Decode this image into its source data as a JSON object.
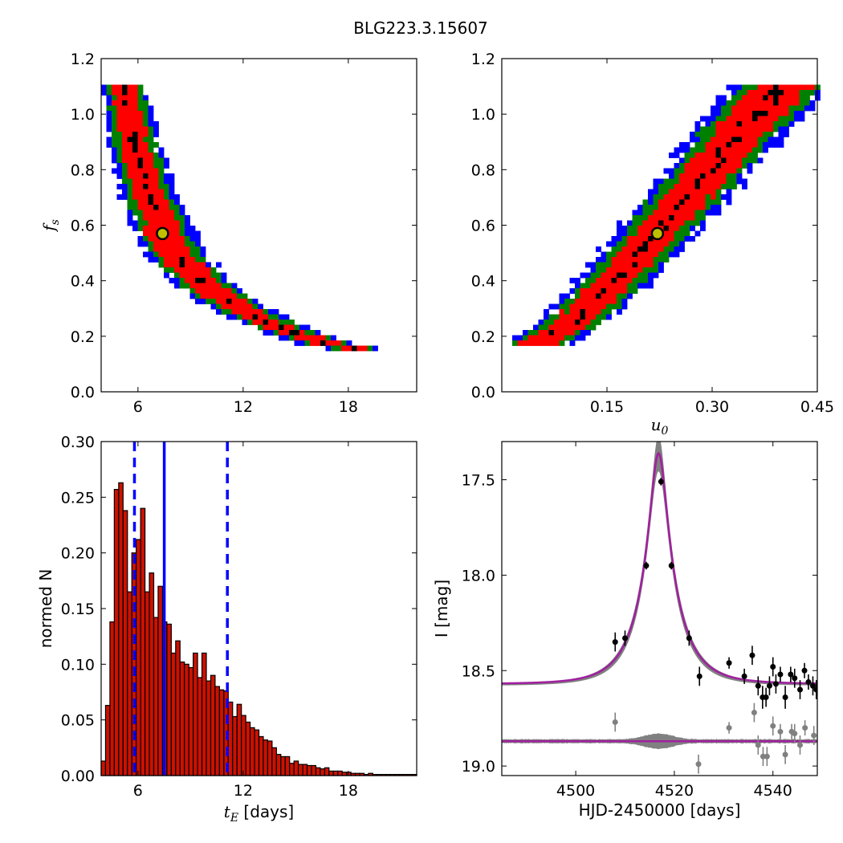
{
  "figure": {
    "title": "BLG223.3.15607"
  },
  "colors": {
    "sigma3": "#0000ff",
    "sigma2": "#008000",
    "sigma1": "#ff0000",
    "best_cells": "#000000",
    "marker_fill": "#bfbf00",
    "hist_fill": "#cc1100",
    "hist_edge": "#000000",
    "vline": "#0000ff",
    "band": "#808080",
    "model": "#a020a0",
    "data": "#000000",
    "resid": "#808080"
  },
  "chart_data": [
    {
      "id": "fs_vs_tE",
      "type": "heatmap",
      "xlabel": "",
      "ylabel": "f_s",
      "xlim": [
        3.9,
        21.9
      ],
      "ylim": [
        0.0,
        1.2
      ],
      "xticks": [
        6,
        12,
        18
      ],
      "xtick_labels": [
        "6",
        "12",
        "18"
      ],
      "yticks": [
        0.0,
        0.2,
        0.4,
        0.6,
        0.8,
        1.0,
        1.2
      ],
      "ytick_labels": [
        "0.0",
        "0.2",
        "0.4",
        "0.6",
        "0.8",
        "1.0",
        "1.2"
      ],
      "marker": {
        "x": 7.4,
        "y": 0.57
      },
      "contour_ridge": [
        [
          5.2,
          1.1
        ],
        [
          5.5,
          1.0
        ],
        [
          5.8,
          0.9
        ],
        [
          6.2,
          0.8
        ],
        [
          6.7,
          0.7
        ],
        [
          7.3,
          0.6
        ],
        [
          8.1,
          0.5
        ],
        [
          9.2,
          0.42
        ],
        [
          10.6,
          0.35
        ],
        [
          12.4,
          0.28
        ],
        [
          14.5,
          0.22
        ],
        [
          17.0,
          0.17
        ],
        [
          20.0,
          0.14
        ]
      ],
      "levels": [
        "1 sigma",
        "2 sigma",
        "3 sigma"
      ]
    },
    {
      "id": "fs_vs_u0",
      "type": "heatmap",
      "xlabel": "u_0",
      "ylabel": "",
      "xlim": [
        0.0,
        0.45
      ],
      "ylim": [
        0.0,
        1.2
      ],
      "xticks": [
        0.15,
        0.3,
        0.45
      ],
      "xtick_labels": [
        "0.15",
        "0.30",
        "0.45"
      ],
      "yticks": [
        0.0,
        0.2,
        0.4,
        0.6,
        0.8,
        1.0,
        1.2
      ],
      "ytick_labels": [
        "0.0",
        "0.2",
        "0.4",
        "0.6",
        "0.8",
        "1.0",
        "1.2"
      ],
      "marker": {
        "x": 0.222,
        "y": 0.57
      },
      "contour_ridge": [
        [
          0.04,
          0.16
        ],
        [
          0.07,
          0.2
        ],
        [
          0.1,
          0.25
        ],
        [
          0.13,
          0.32
        ],
        [
          0.16,
          0.4
        ],
        [
          0.19,
          0.48
        ],
        [
          0.22,
          0.57
        ],
        [
          0.25,
          0.66
        ],
        [
          0.28,
          0.75
        ],
        [
          0.31,
          0.84
        ],
        [
          0.34,
          0.93
        ],
        [
          0.37,
          1.02
        ],
        [
          0.4,
          1.1
        ]
      ],
      "levels": [
        "1 sigma",
        "2 sigma",
        "3 sigma"
      ]
    },
    {
      "id": "tE_histogram",
      "type": "bar",
      "xlabel": "t_E [days]",
      "ylabel": "normed N",
      "xlim": [
        3.9,
        21.9
      ],
      "ylim": [
        0.0,
        0.3
      ],
      "xticks": [
        6,
        12,
        18
      ],
      "xtick_labels": [
        "6",
        "12",
        "18"
      ],
      "yticks": [
        0.0,
        0.05,
        0.1,
        0.15,
        0.2,
        0.25,
        0.3
      ],
      "ytick_labels": [
        "0.00",
        "0.05",
        "0.10",
        "0.15",
        "0.20",
        "0.25",
        "0.30"
      ],
      "bin_start": 3.9,
      "bin_width": 0.25,
      "values": [
        0.013,
        0.063,
        0.138,
        0.257,
        0.263,
        0.238,
        0.165,
        0.2,
        0.212,
        0.24,
        0.165,
        0.182,
        0.142,
        0.17,
        0.138,
        0.136,
        0.11,
        0.121,
        0.102,
        0.1,
        0.097,
        0.11,
        0.088,
        0.11,
        0.085,
        0.09,
        0.08,
        0.077,
        0.076,
        0.066,
        0.053,
        0.064,
        0.054,
        0.048,
        0.043,
        0.041,
        0.035,
        0.032,
        0.031,
        0.025,
        0.019,
        0.017,
        0.017,
        0.011,
        0.013,
        0.01,
        0.01,
        0.009,
        0.009,
        0.007,
        0.006,
        0.007,
        0.004,
        0.004,
        0.004,
        0.003,
        0.003,
        0.002,
        0.002,
        0.002,
        0.001,
        0.002,
        0.001,
        0.001,
        0.001,
        0.001,
        0.001,
        0.001,
        0.001,
        0.001,
        0.001,
        0.001
      ],
      "median": 7.5,
      "lower": 5.8,
      "upper": 11.1
    },
    {
      "id": "lightcurve",
      "type": "scatter",
      "xlabel": "HJD-2450000 [days]",
      "ylabel": "I [mag]",
      "xlim": [
        4485,
        4549
      ],
      "ylim": [
        19.05,
        17.3
      ],
      "xticks": [
        4500,
        4520,
        4540
      ],
      "xtick_labels": [
        "4500",
        "4520",
        "4540"
      ],
      "yticks": [
        17.5,
        18.0,
        18.5,
        19.0
      ],
      "ytick_labels": [
        "17.5",
        "18.0",
        "18.5",
        "19.0"
      ],
      "model": {
        "t0": 4516.8,
        "tE": 7.4,
        "u0": 0.222,
        "fs": 0.57,
        "baseline": 18.57
      },
      "residual_offset": 18.87,
      "points": [
        {
          "x": 4508.0,
          "y": 18.35,
          "e": 0.05
        },
        {
          "x": 4510.0,
          "y": 18.33,
          "e": 0.04
        },
        {
          "x": 4514.3,
          "y": 17.95,
          "e": 0.02
        },
        {
          "x": 4517.3,
          "y": 17.51,
          "e": 0.02
        },
        {
          "x": 4519.4,
          "y": 17.95,
          "e": 0.02
        },
        {
          "x": 4523.0,
          "y": 18.33,
          "e": 0.04
        },
        {
          "x": 4525.1,
          "y": 18.53,
          "e": 0.05
        },
        {
          "x": 4531.1,
          "y": 18.46,
          "e": 0.03
        },
        {
          "x": 4534.2,
          "y": 18.53,
          "e": 0.04
        },
        {
          "x": 4535.8,
          "y": 18.42,
          "e": 0.05
        },
        {
          "x": 4537.0,
          "y": 18.58,
          "e": 0.05
        },
        {
          "x": 4537.9,
          "y": 18.64,
          "e": 0.06
        },
        {
          "x": 4538.6,
          "y": 18.64,
          "e": 0.05
        },
        {
          "x": 4539.3,
          "y": 18.58,
          "e": 0.05
        },
        {
          "x": 4540.0,
          "y": 18.48,
          "e": 0.05
        },
        {
          "x": 4540.6,
          "y": 18.57,
          "e": 0.05
        },
        {
          "x": 4541.5,
          "y": 18.52,
          "e": 0.04
        },
        {
          "x": 4542.5,
          "y": 18.64,
          "e": 0.06
        },
        {
          "x": 4543.6,
          "y": 18.52,
          "e": 0.04
        },
        {
          "x": 4544.4,
          "y": 18.54,
          "e": 0.05
        },
        {
          "x": 4545.5,
          "y": 18.6,
          "e": 0.05
        },
        {
          "x": 4546.4,
          "y": 18.5,
          "e": 0.04
        },
        {
          "x": 4547.2,
          "y": 18.56,
          "e": 0.04
        },
        {
          "x": 4548.1,
          "y": 18.58,
          "e": 0.05
        },
        {
          "x": 4548.8,
          "y": 18.6,
          "e": 0.05
        }
      ],
      "residuals": [
        {
          "x": 4508.0,
          "y": 18.77,
          "e": 0.05
        },
        {
          "x": 4524.9,
          "y": 18.99,
          "e": 0.05
        },
        {
          "x": 4531.1,
          "y": 18.8,
          "e": 0.03
        },
        {
          "x": 4536.2,
          "y": 18.72,
          "e": 0.05
        },
        {
          "x": 4537.0,
          "y": 18.89,
          "e": 0.05
        },
        {
          "x": 4538.0,
          "y": 18.95,
          "e": 0.05
        },
        {
          "x": 4538.8,
          "y": 18.95,
          "e": 0.05
        },
        {
          "x": 4540.0,
          "y": 18.79,
          "e": 0.05
        },
        {
          "x": 4541.5,
          "y": 18.82,
          "e": 0.04
        },
        {
          "x": 4542.5,
          "y": 18.94,
          "e": 0.05
        },
        {
          "x": 4543.8,
          "y": 18.82,
          "e": 0.04
        },
        {
          "x": 4544.4,
          "y": 18.83,
          "e": 0.05
        },
        {
          "x": 4545.5,
          "y": 18.89,
          "e": 0.05
        },
        {
          "x": 4546.5,
          "y": 18.8,
          "e": 0.04
        },
        {
          "x": 4548.3,
          "y": 18.84,
          "e": 0.05
        }
      ]
    }
  ]
}
